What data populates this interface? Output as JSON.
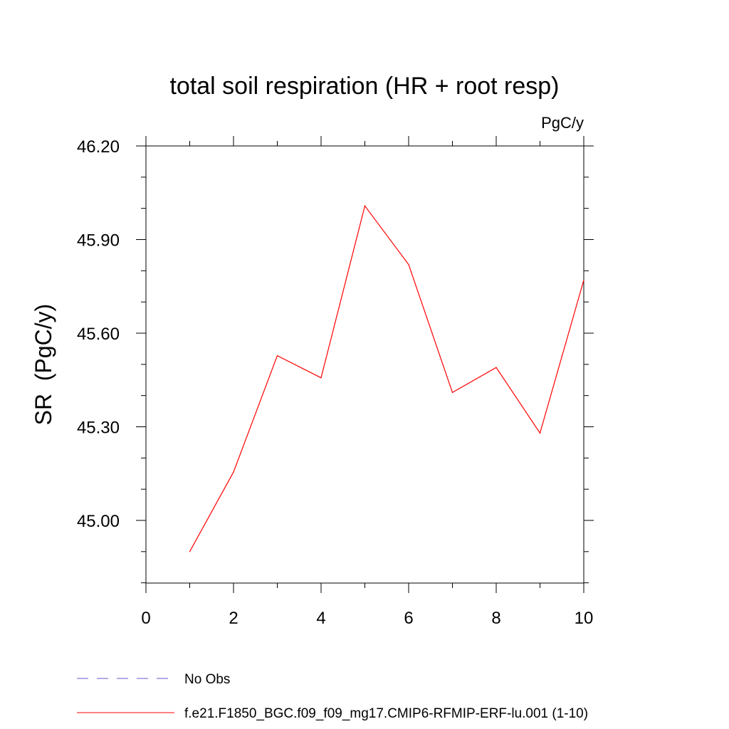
{
  "chart_data": {
    "type": "line",
    "title": "total soil respiration (HR + root resp)",
    "units": "PgC/y",
    "xlabel": "",
    "ylabel": "SR  (PgC/y)",
    "xlim": [
      0,
      10
    ],
    "ylim": [
      44.8,
      46.24
    ],
    "x_ticks": [
      0,
      2,
      4,
      6,
      8,
      10
    ],
    "x_tick_labels": [
      "0",
      "2",
      "4",
      "6",
      "8",
      "10"
    ],
    "x_minor_ticks": [
      1,
      3,
      5,
      7,
      9
    ],
    "y_ticks": [
      45.0,
      45.3,
      45.6,
      45.9,
      46.2
    ],
    "y_tick_labels": [
      "45.00",
      "45.30",
      "45.60",
      "45.90",
      "46.20"
    ],
    "y_minor_step": 0.1,
    "grid": false,
    "series": [
      {
        "name": "f.e21.F1850_BGC.f09_f09_mg17.CMIP6-RFMIP-ERF-lu.001 (1-10)",
        "color": "#ff0000",
        "style": "solid",
        "x": [
          1,
          2,
          3,
          4,
          5,
          6,
          7,
          8,
          9,
          10
        ],
        "values": [
          44.9,
          45.155,
          45.528,
          45.457,
          46.008,
          45.82,
          45.41,
          45.49,
          45.28,
          45.77
        ]
      }
    ],
    "legend": [
      {
        "label": "No Obs",
        "color": "#6a5acd",
        "style": "dashed"
      },
      {
        "label": "f.e21.F1850_BGC.f09_f09_mg17.CMIP6-RFMIP-ERF-lu.001 (1-10)",
        "color": "#ff0000",
        "style": "solid"
      }
    ],
    "legend_placement": "bottom"
  }
}
